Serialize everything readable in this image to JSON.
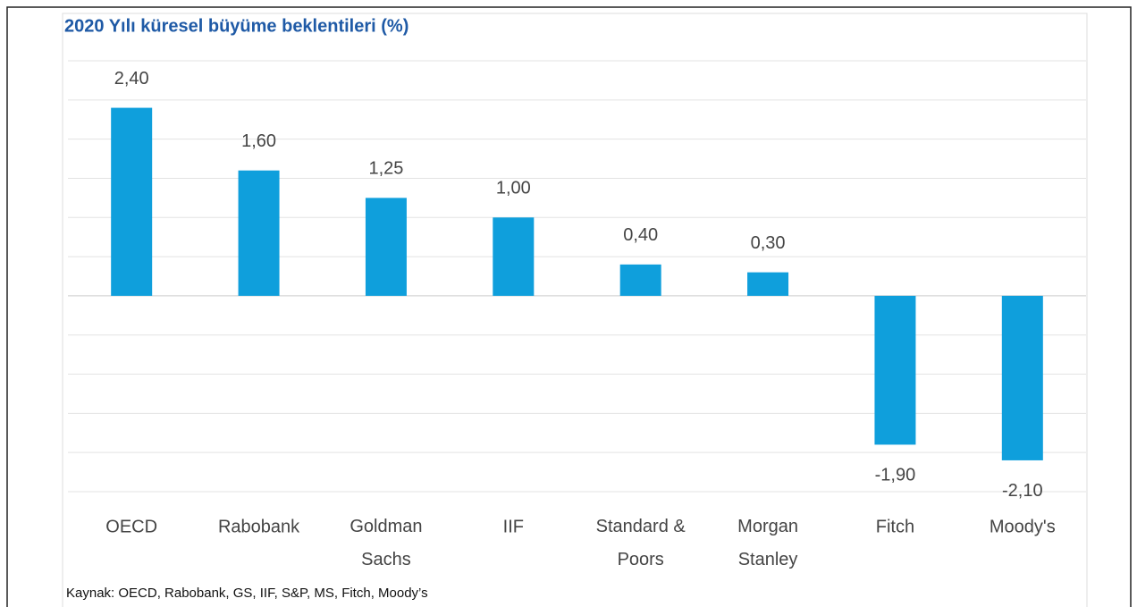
{
  "chart_data": {
    "type": "bar",
    "title": "2020 Yılı küresel büyüme beklentileri (%)",
    "categories": [
      "OECD",
      "Rabobank",
      "Goldman Sachs",
      "IIF",
      "Standard & Poors",
      "Morgan Stanley",
      "Fitch",
      "Moody's"
    ],
    "values": [
      2.4,
      1.6,
      1.25,
      1.0,
      0.4,
      0.3,
      -1.9,
      -2.1
    ],
    "value_labels": [
      "2,40",
      "1,60",
      "1,25",
      "1,00",
      "0,40",
      "0,30",
      "-1,90",
      "-2,10"
    ],
    "color": "#0f9fdc",
    "ylim": [
      -2.5,
      3
    ],
    "yticks": [
      -2.5,
      -2,
      -1.5,
      -1,
      -0.5,
      0,
      0.5,
      1,
      1.5,
      2,
      2.5,
      3
    ],
    "grid": true,
    "source": "Kaynak: OECD, Rabobank, GS, IIF, S&P, MS, Fitch, Moody’s"
  }
}
